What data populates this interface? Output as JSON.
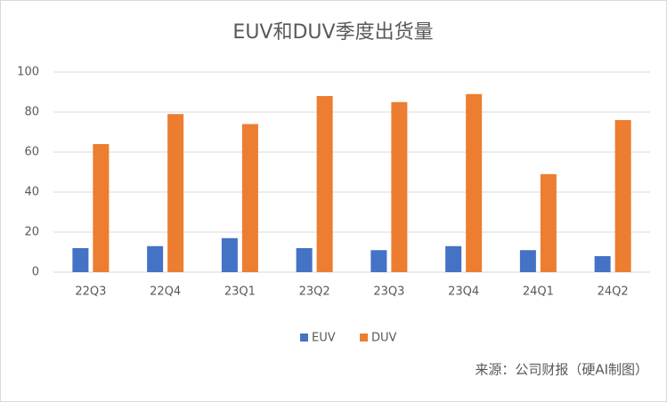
{
  "chart_data": {
    "type": "bar",
    "title": "EUV和DUV季度出货量",
    "categories": [
      "22Q3",
      "22Q4",
      "23Q1",
      "23Q2",
      "23Q3",
      "23Q4",
      "24Q1",
      "24Q2"
    ],
    "series": [
      {
        "name": "EUV",
        "color": "#4472c4",
        "values": [
          12,
          13,
          17,
          12,
          11,
          13,
          11,
          8
        ]
      },
      {
        "name": "DUV",
        "color": "#ed7d31",
        "values": [
          64,
          79,
          74,
          88,
          85,
          89,
          49,
          76
        ]
      }
    ],
    "ylim": [
      0,
      100
    ],
    "yticks": [
      0,
      20,
      40,
      60,
      80,
      100
    ],
    "grid": true,
    "legend": "bottom",
    "source": "来源：公司财报（硬AI制图）"
  }
}
